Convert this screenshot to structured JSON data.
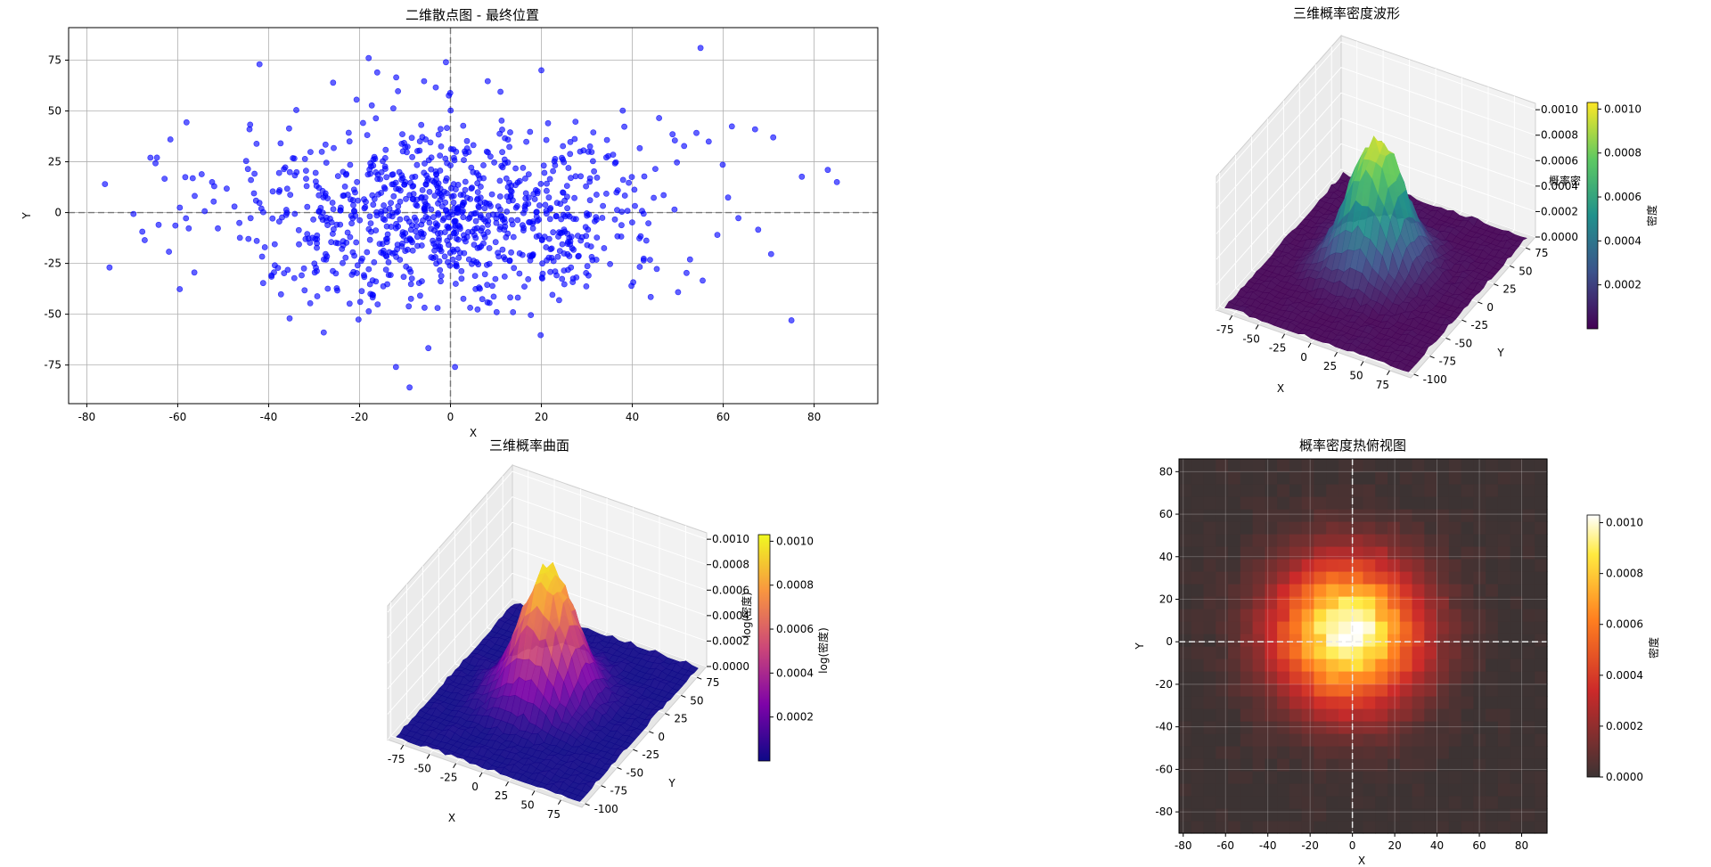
{
  "figure": {
    "panels": [
      {
        "id": "scatter",
        "title": "二维散点图 - 最终位置"
      },
      {
        "id": "wave3d",
        "title": "三维概率密度波形"
      },
      {
        "id": "surface3d",
        "title": "三维概率曲面"
      },
      {
        "id": "heatmap",
        "title": "概率密度热俯视图"
      }
    ]
  },
  "chart_data": [
    {
      "type": "scatter",
      "title": "二维散点图 - 最终位置",
      "xlabel": "X",
      "ylabel": "Y",
      "xlim": [
        -84,
        94
      ],
      "ylim": [
        -94,
        91
      ],
      "xticks": [
        -80,
        -60,
        -40,
        -20,
        0,
        20,
        40,
        60,
        80
      ],
      "yticks": [
        -75,
        -50,
        -25,
        0,
        25,
        50,
        75
      ],
      "grid": true,
      "color": "#0000ff",
      "reference_lines": {
        "x": 0,
        "y": 0
      },
      "points_description": "about 1000 random-walk end points, roughly Gaussian around (0,0) with std ~25",
      "point_count": 1000,
      "std": 24,
      "notable_points": [
        [
          55,
          81
        ],
        [
          -42,
          73
        ],
        [
          -18,
          76
        ],
        [
          -1,
          74
        ],
        [
          20,
          70
        ],
        [
          75,
          -53
        ],
        [
          -75,
          -27
        ],
        [
          85,
          15
        ],
        [
          83,
          21
        ],
        [
          71,
          37
        ],
        [
          67,
          41
        ],
        [
          -9,
          -86
        ],
        [
          -12,
          -76
        ],
        [
          1,
          -76
        ],
        [
          -76,
          14
        ],
        [
          -66,
          27
        ]
      ]
    },
    {
      "type": "surface3d",
      "title": "三维概率密度波形",
      "xlabel": "X",
      "ylabel": "Y",
      "zlabel": "概率密",
      "xticks": [
        -75,
        -50,
        -25,
        0,
        25,
        50,
        75
      ],
      "yticks": [
        -100,
        -75,
        -50,
        -25,
        0,
        25,
        50,
        75
      ],
      "zticks": [
        0.0,
        0.0002,
        0.0004,
        0.0006,
        0.0008,
        0.001
      ],
      "zticklabels": [
        "0.0000",
        "0.0002",
        "0.0004",
        "0.0006",
        "0.0008",
        "0.0010"
      ],
      "zlim": [
        0,
        0.00105
      ],
      "peak": 0.00103,
      "colormap": "viridis",
      "colorbar": {
        "label": "密度",
        "ticks": [
          0.0002,
          0.0004,
          0.0006,
          0.0008,
          0.001
        ],
        "ticklabels": [
          "0.0002",
          "0.0004",
          "0.0006",
          "0.0008",
          "0.0010"
        ],
        "range": [
          0,
          0.00103
        ]
      }
    },
    {
      "type": "surface3d",
      "title": "三维概率曲面",
      "xlabel": "X",
      "ylabel": "Y",
      "zlabel": "log(密度)",
      "xticks": [
        -75,
        -50,
        -25,
        0,
        25,
        50,
        75
      ],
      "yticks": [
        -100,
        -75,
        -50,
        -25,
        0,
        25,
        50,
        75
      ],
      "zticks": [
        0.0,
        0.0002,
        0.0004,
        0.0006,
        0.0008,
        0.001
      ],
      "zticklabels": [
        "0.0000",
        "0.0002",
        "0.0004",
        "0.0006",
        "0.0008",
        "0.0010"
      ],
      "zlim": [
        0,
        0.00105
      ],
      "peak": 0.00103,
      "colormap": "plasma",
      "colorbar": {
        "label": "log(密度)",
        "ticks": [
          0.0002,
          0.0004,
          0.0006,
          0.0008,
          0.001
        ],
        "ticklabels": [
          "0.0002",
          "0.0004",
          "0.0006",
          "0.0008",
          "0.0010"
        ],
        "range": [
          0,
          0.00103
        ]
      }
    },
    {
      "type": "heatmap",
      "title": "概率密度热俯视图",
      "xlabel": "X",
      "ylabel": "Y",
      "xlim": [
        -82,
        92
      ],
      "ylim": [
        -90,
        86
      ],
      "xticks": [
        -80,
        -60,
        -40,
        -20,
        0,
        20,
        40,
        60,
        80
      ],
      "yticks": [
        -80,
        -60,
        -40,
        -20,
        0,
        20,
        40,
        60,
        80
      ],
      "grid": true,
      "reference_lines": {
        "x": 0,
        "y": 0
      },
      "bins": 30,
      "peak": 0.00103,
      "center": [
        -2,
        4
      ],
      "std": 24,
      "colormap": "hot",
      "colorbar": {
        "label": "密度",
        "ticks": [
          0,
          0.0002,
          0.0004,
          0.0006,
          0.0008,
          0.001
        ],
        "ticklabels": [
          "0.0000",
          "0.0002",
          "0.0004",
          "0.0006",
          "0.0008",
          "0.0010"
        ],
        "range": [
          0,
          0.00103
        ]
      }
    }
  ]
}
